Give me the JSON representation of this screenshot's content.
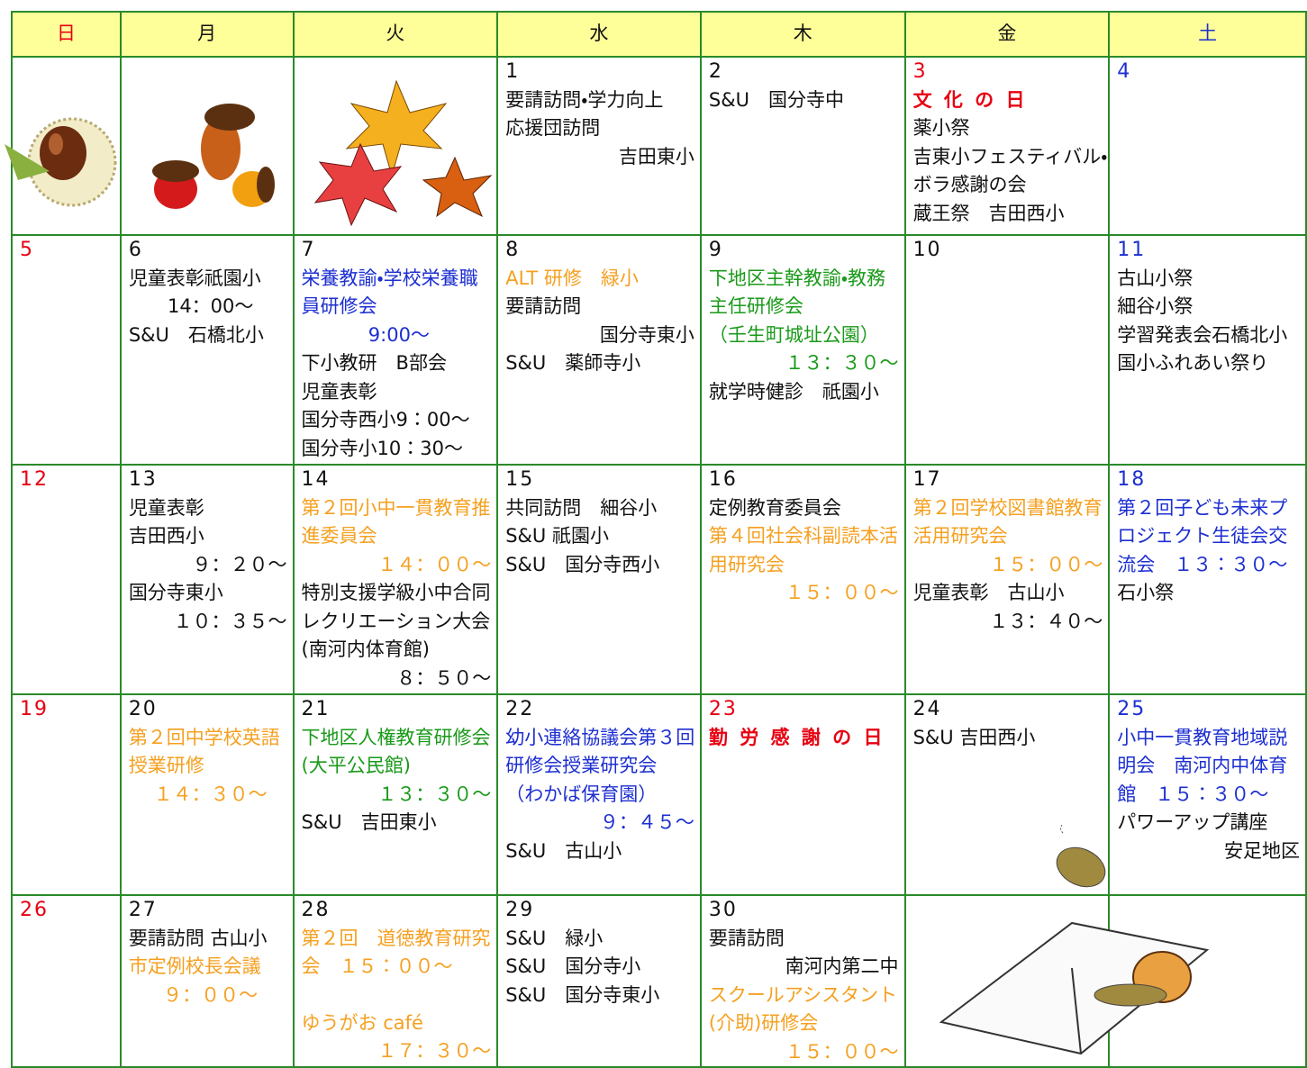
{
  "header": {
    "days": [
      "日",
      "月",
      "火",
      "水",
      "木",
      "金",
      "土"
    ]
  },
  "weeks": [
    [
      {},
      {},
      {},
      {
        "day": "1",
        "lines": [
          "要請訪問・学力向上",
          "応援団訪問",
          {
            "text": "吉田東小",
            "align": "right"
          }
        ]
      },
      {
        "day": "2",
        "lines": [
          "S&U　国分寺中"
        ]
      },
      {
        "day": "3",
        "holiday": true,
        "lines": [
          {
            "text": "文 化 の 日",
            "color": "red",
            "bold": true
          },
          "薬小祭",
          "吉東小フェスティバル・ボラ感謝の会",
          "蔵王祭　吉田西小"
        ]
      },
      {
        "day": "4",
        "lines": []
      }
    ],
    [
      {
        "day": "5",
        "lines": []
      },
      {
        "day": "6",
        "lines": [
          "児童表彰祇園小",
          {
            "text": "14：00～",
            "align": "center"
          },
          "S&U　石橋北小"
        ]
      },
      {
        "day": "7",
        "lines": [
          {
            "text": "栄養教諭・学校栄養職員研修会",
            "color": "blue"
          },
          {
            "text": "9:00～",
            "color": "blue",
            "align": "center"
          },
          "下小教研　B部会",
          "児童表彰",
          "国分寺西小9：00～",
          "国分寺小10：30～"
        ]
      },
      {
        "day": "8",
        "lines": [
          {
            "text": "ALT 研修　緑小",
            "color": "orange"
          },
          "要請訪問",
          {
            "text": "国分寺東小",
            "align": "right"
          },
          "S&U　薬師寺小"
        ]
      },
      {
        "day": "9",
        "lines": [
          {
            "text": "下地区主幹教諭・教務主任研修会",
            "color": "green"
          },
          {
            "text": "（壬生町城址公園）",
            "color": "green"
          },
          {
            "text": "１３：３０～",
            "color": "green",
            "align": "right"
          },
          "就学時健診　祇園小"
        ]
      },
      {
        "day": "10",
        "lines": []
      },
      {
        "day": "11",
        "lines": [
          "古山小祭",
          "細谷小祭",
          "学習発表会石橋北小",
          "国小ふれあい祭り"
        ]
      }
    ],
    [
      {
        "day": "12",
        "lines": []
      },
      {
        "day": "13",
        "lines": [
          "児童表彰",
          "吉田西小",
          {
            "text": "９：２０～",
            "align": "right"
          },
          "国分寺東小",
          {
            "text": "１０：３５～",
            "align": "right"
          }
        ]
      },
      {
        "day": "14",
        "lines": [
          {
            "text": "第２回小中一貫教育推進委員会",
            "color": "orange"
          },
          {
            "text": "１４：００～",
            "color": "orange",
            "align": "right"
          },
          "特別支援学級小中合同レクリエーション大会(南河内体育館)",
          {
            "text": "８：５０～",
            "align": "right"
          }
        ]
      },
      {
        "day": "15",
        "lines": [
          "共同訪問　細谷小",
          "S&U 祇園小",
          "S&U　国分寺西小"
        ]
      },
      {
        "day": "16",
        "lines": [
          "定例教育委員会",
          {
            "text": "第４回社会科副読本活用研究会",
            "color": "orange"
          },
          {
            "text": "１５：００～",
            "color": "orange",
            "align": "right"
          }
        ]
      },
      {
        "day": "17",
        "lines": [
          {
            "text": "第２回学校図書館教育活用研究会",
            "color": "orange"
          },
          {
            "text": "１５：００～",
            "color": "orange",
            "align": "right"
          },
          "児童表彰　古山小",
          {
            "text": "１３：４０～",
            "align": "right"
          }
        ]
      },
      {
        "day": "18",
        "lines": [
          {
            "text": "第２回子ども未来プロジェクト生徒会交流会　１３：３０～",
            "color": "blue"
          },
          "石小祭"
        ]
      }
    ],
    [
      {
        "day": "19",
        "lines": []
      },
      {
        "day": "20",
        "lines": [
          {
            "text": "第２回中学校英語授業研修",
            "color": "orange"
          },
          {
            "text": "１４：３０～",
            "color": "orange",
            "align": "center"
          }
        ]
      },
      {
        "day": "21",
        "lines": [
          {
            "text": "下地区人権教育研修会(大平公民館)",
            "color": "green"
          },
          {
            "text": "１３：３０～",
            "color": "green",
            "align": "right"
          },
          "S&U　吉田東小"
        ]
      },
      {
        "day": "22",
        "lines": [
          {
            "text": "幼小連絡協議会第３回研修会授業研究会",
            "color": "blue"
          },
          {
            "text": "（わかば保育園）",
            "color": "blue"
          },
          {
            "text": "９：４５～",
            "color": "blue",
            "align": "right"
          },
          "S&U　古山小"
        ]
      },
      {
        "day": "23",
        "holiday": true,
        "lines": [
          {
            "text": "勤 労 感 謝 の 日",
            "color": "red",
            "bold": true
          }
        ]
      },
      {
        "day": "24",
        "lines": [
          "S&U 吉田西小"
        ]
      },
      {
        "day": "25",
        "lines": [
          {
            "text": "小中一貫教育地域説明会　南河内中体育館　１５：３０～",
            "color": "blue"
          },
          "パワーアップ講座",
          {
            "text": "安足地区",
            "align": "right"
          }
        ]
      }
    ],
    [
      {
        "day": "26",
        "lines": []
      },
      {
        "day": "27",
        "lines": [
          "要請訪問 古山小",
          {
            "text": "市定例校長会議",
            "color": "orange"
          },
          {
            "text": "９：００～",
            "color": "orange",
            "align": "center"
          }
        ]
      },
      {
        "day": "28",
        "lines": [
          {
            "text": "第２回　道徳教育研究会　１５：００～",
            "color": "orange"
          },
          {
            "text": "ゆうがお café",
            "color": "orange",
            "gap": true
          },
          {
            "text": "１７：３０～",
            "color": "orange",
            "align": "right"
          }
        ]
      },
      {
        "day": "29",
        "lines": [
          "S&U　緑小",
          "S&U　国分寺小",
          "S&U　国分寺東小"
        ]
      },
      {
        "day": "30",
        "lines": [
          "要請訪問",
          {
            "text": "南河内第二中",
            "align": "right"
          },
          {
            "text": "スクールアシスタント(介助)研修会",
            "color": "orange"
          },
          {
            "text": "１５：００～",
            "color": "orange",
            "align": "right"
          }
        ]
      },
      {},
      {}
    ]
  ]
}
